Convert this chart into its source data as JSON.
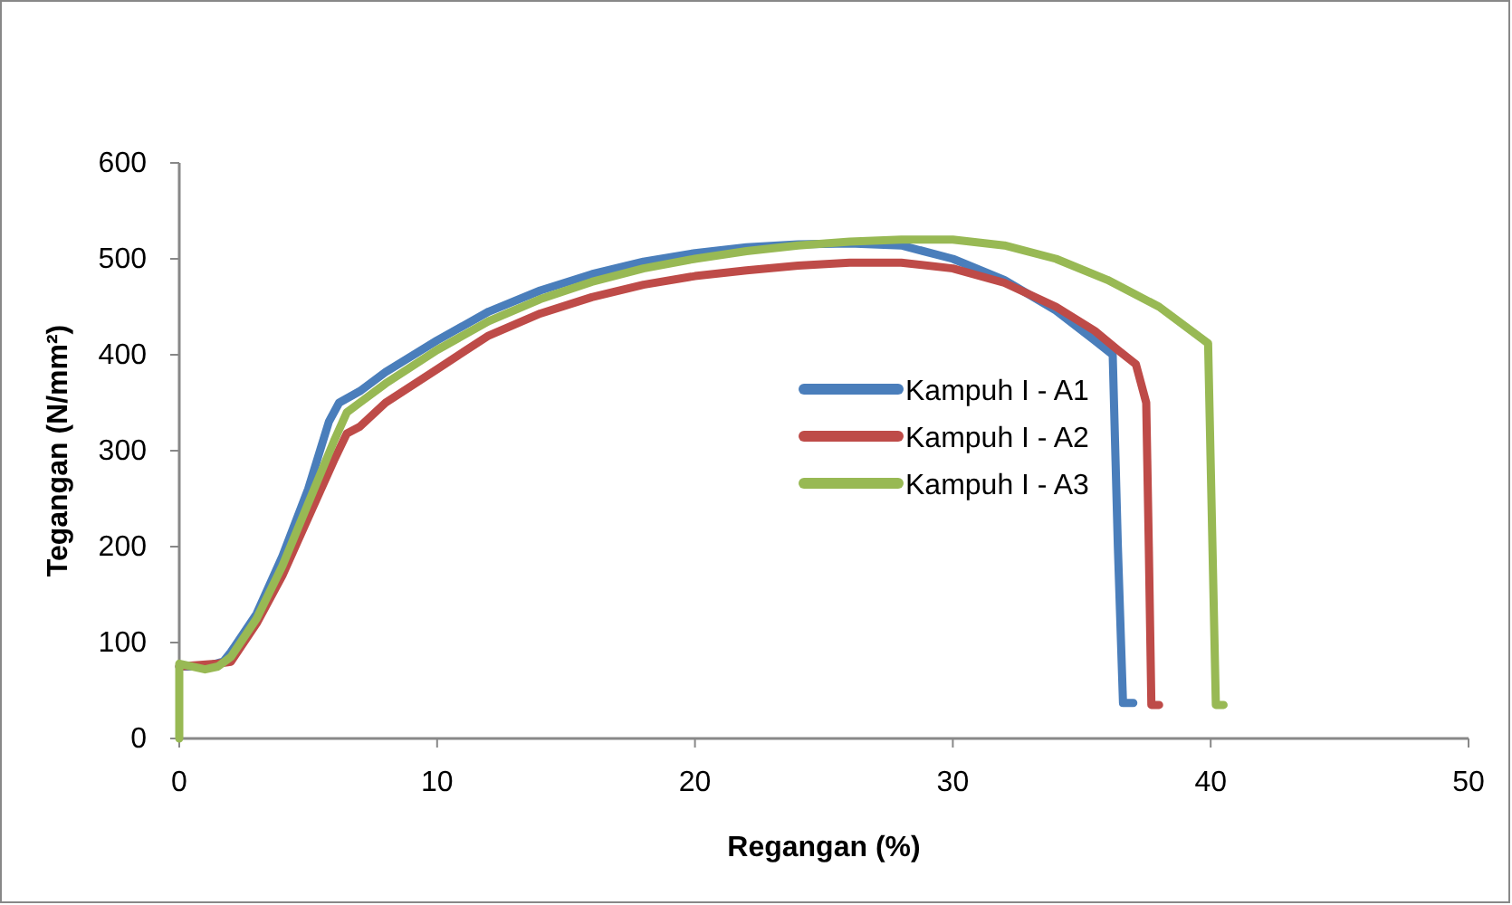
{
  "chart_data": {
    "type": "line",
    "xlabel": "Regangan (%)",
    "ylabel": "Tegangan (N/mm²)",
    "xlim": [
      0,
      50
    ],
    "xticks": [
      0,
      10,
      20,
      30,
      40,
      50
    ],
    "ylim": [
      0,
      600
    ],
    "yticks": [
      0,
      100,
      200,
      300,
      400,
      500,
      600
    ],
    "grid": false,
    "legend": "right",
    "marker": "none",
    "line_style": "solid",
    "series": [
      {
        "name": "Kampuh I - A1",
        "color": "#4a7ebb",
        "x": [
          0,
          1,
          1.7,
          2,
          3,
          4,
          5,
          5.8,
          6.2,
          7,
          8,
          10,
          12,
          14,
          16,
          18,
          20,
          22,
          24,
          26,
          28,
          30,
          32,
          34,
          35.5,
          36.2,
          36.4,
          36.6,
          37
        ],
        "values": [
          75,
          75,
          80,
          90,
          130,
          190,
          260,
          330,
          350,
          362,
          382,
          415,
          445,
          467,
          484,
          497,
          506,
          512,
          515,
          516,
          514,
          500,
          478,
          446,
          415,
          400,
          200,
          37,
          37
        ]
      },
      {
        "name": "Kampuh I - A2",
        "color": "#be4b48",
        "x": [
          0,
          1.5,
          2,
          3,
          4,
          5,
          6,
          6.5,
          7,
          8,
          10,
          12,
          14,
          16,
          18,
          20,
          22,
          24,
          26,
          28,
          30,
          32,
          34,
          35.5,
          36.4,
          37.1,
          37.5,
          37.6,
          37.7,
          38
        ],
        "values": [
          75,
          78,
          80,
          120,
          170,
          230,
          290,
          318,
          325,
          350,
          385,
          420,
          443,
          460,
          473,
          482,
          488,
          493,
          496,
          496,
          490,
          475,
          450,
          425,
          405,
          390,
          350,
          200,
          35,
          35
        ]
      },
      {
        "name": "Kampuh I - A3",
        "color": "#98b954",
        "x": [
          0,
          0,
          1,
          1.5,
          2,
          3,
          4,
          5,
          6,
          6.5,
          7,
          8,
          10,
          12,
          14,
          16,
          18,
          20,
          22,
          24,
          26,
          28,
          30,
          32,
          34,
          36,
          38,
          39.9,
          40.2,
          40.5
        ],
        "values": [
          0,
          78,
          72,
          75,
          85,
          125,
          180,
          245,
          310,
          340,
          350,
          370,
          405,
          435,
          458,
          476,
          490,
          500,
          508,
          514,
          518,
          520,
          520,
          514,
          500,
          478,
          450,
          412,
          35,
          35
        ]
      }
    ]
  }
}
